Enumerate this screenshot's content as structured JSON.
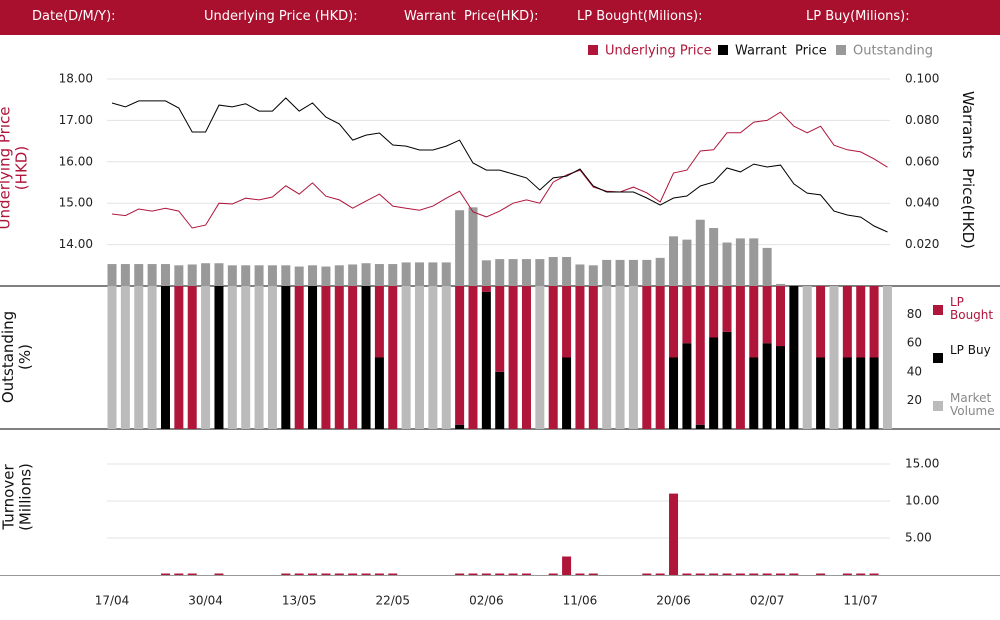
{
  "header": {
    "fields": [
      "Date(D/M/Y):",
      "Underlying Price (HKD):",
      "Warrant  Price(HKD):",
      "LP Bought(Milions):",
      "LP Buy(Milions):"
    ]
  },
  "chart_data": [
    {
      "type": "line",
      "ylabel": "Underlying Price (HKD)",
      "y2label": "Warrants  Price(HKD)",
      "ylim": [
        13,
        18
      ],
      "yticks": [
        {
          "value": 14,
          "label": "14.00"
        },
        {
          "value": 15,
          "label": "15.00"
        },
        {
          "value": 16,
          "label": "16.00"
        },
        {
          "value": 17,
          "label": "17.00"
        },
        {
          "value": 18,
          "label": "18.00"
        }
      ],
      "y2lim": [
        0,
        0.1
      ],
      "y2ticks": [
        {
          "value": 0.02,
          "label": "0.020"
        },
        {
          "value": 0.04,
          "label": "0.040"
        },
        {
          "value": 0.06,
          "label": "0.060"
        },
        {
          "value": 0.08,
          "label": "0.080"
        },
        {
          "value": 0.1,
          "label": "0.100"
        }
      ],
      "grid": true,
      "series": [
        {
          "name": "Underlying Price",
          "color": "#b0153a",
          "type": "line",
          "values": [
            14.74,
            14.7,
            14.86,
            14.81,
            14.88,
            14.81,
            14.4,
            14.47,
            15.0,
            14.98,
            15.12,
            15.08,
            15.15,
            15.42,
            15.22,
            15.49,
            15.17,
            15.08,
            14.88,
            15.05,
            15.22,
            14.93,
            14.88,
            14.83,
            14.93,
            15.12,
            15.29,
            14.79,
            14.67,
            14.81,
            15.0,
            15.08,
            15.0,
            15.51,
            15.68,
            15.8,
            15.39,
            15.29,
            15.27,
            15.39,
            15.25,
            15.03,
            15.73,
            15.8,
            16.26,
            16.29,
            16.7,
            16.7,
            16.96,
            17.0,
            17.2,
            16.86,
            16.7,
            16.86,
            16.4,
            16.29,
            16.24,
            16.07,
            15.87
          ]
        },
        {
          "name": "Warrant  Price",
          "color": "#000000",
          "type": "line",
          "axis": "y2",
          "values": [
            0.0884,
            0.0865,
            0.0894,
            0.0894,
            0.0894,
            0.086,
            0.0744,
            0.0744,
            0.0874,
            0.0865,
            0.088,
            0.0845,
            0.0845,
            0.0908,
            0.0845,
            0.0884,
            0.0816,
            0.0783,
            0.0705,
            0.0729,
            0.0739,
            0.0681,
            0.0676,
            0.0657,
            0.0657,
            0.0676,
            0.0705,
            0.0594,
            0.056,
            0.056,
            0.0541,
            0.0522,
            0.0464,
            0.0522,
            0.0531,
            0.0565,
            0.0483,
            0.0454,
            0.0454,
            0.0454,
            0.0425,
            0.0391,
            0.0425,
            0.0435,
            0.0483,
            0.0502,
            0.057,
            0.0551,
            0.0589,
            0.0575,
            0.0584,
            0.0493,
            0.0449,
            0.044,
            0.0362,
            0.0343,
            0.0333,
            0.029,
            0.0261
          ]
        },
        {
          "name": "Outstanding",
          "color": "#999999",
          "type": "bar",
          "values": [
            13.53,
            13.53,
            13.53,
            13.53,
            13.53,
            13.5,
            13.52,
            13.55,
            13.55,
            13.5,
            13.5,
            13.5,
            13.5,
            13.5,
            13.47,
            13.5,
            13.47,
            13.5,
            13.52,
            13.55,
            13.53,
            13.53,
            13.57,
            13.57,
            13.57,
            13.57,
            14.83,
            14.9,
            13.62,
            13.65,
            13.65,
            13.65,
            13.65,
            13.7,
            13.7,
            13.52,
            13.5,
            13.63,
            13.63,
            13.63,
            13.63,
            13.68,
            14.2,
            14.12,
            14.6,
            14.4,
            14.05,
            14.15,
            14.15,
            13.92,
            13.05,
            null,
            null,
            null,
            null,
            null,
            null,
            null,
            null
          ]
        }
      ]
    },
    {
      "type": "stacked_bar",
      "ylabel": "Outstanding (%)",
      "ylim": [
        0,
        100
      ],
      "yticks": [
        20,
        40,
        60,
        80
      ],
      "series": [
        {
          "name": "LP Bought",
          "color": "#b0153a",
          "values": [
            0,
            0,
            0,
            0,
            0,
            100,
            100,
            0,
            0,
            0,
            0,
            0,
            0,
            0,
            100,
            0,
            100,
            100,
            100,
            0,
            50,
            100,
            0,
            0,
            0,
            0,
            97,
            100,
            4,
            60,
            100,
            100,
            0,
            100,
            50,
            100,
            100,
            0,
            0,
            0,
            100,
            100,
            50,
            40,
            97,
            36,
            32,
            100,
            50,
            40,
            42,
            0,
            0,
            50,
            0,
            50,
            50,
            50,
            0
          ]
        },
        {
          "name": "LP Buy",
          "color": "#000000",
          "values": [
            0,
            0,
            0,
            0,
            100,
            0,
            0,
            0,
            100,
            0,
            0,
            0,
            0,
            100,
            0,
            100,
            0,
            0,
            0,
            100,
            50,
            0,
            0,
            0,
            0,
            0,
            3,
            0,
            96,
            40,
            0,
            0,
            0,
            0,
            50,
            0,
            0,
            0,
            0,
            0,
            0,
            0,
            50,
            60,
            3,
            64,
            68,
            0,
            50,
            60,
            58,
            100,
            0,
            50,
            0,
            50,
            50,
            50,
            0
          ]
        },
        {
          "name": "Market Volume",
          "color": "#bbbbbb",
          "values": [
            100,
            100,
            100,
            100,
            0,
            0,
            0,
            100,
            0,
            100,
            100,
            100,
            100,
            0,
            0,
            0,
            0,
            0,
            0,
            0,
            0,
            0,
            100,
            100,
            100,
            100,
            0,
            0,
            0,
            0,
            0,
            0,
            100,
            0,
            0,
            0,
            0,
            100,
            100,
            100,
            0,
            0,
            0,
            0,
            0,
            0,
            0,
            0,
            0,
            0,
            0,
            0,
            100,
            0,
            100,
            0,
            0,
            0,
            100
          ]
        }
      ]
    },
    {
      "type": "bar",
      "ylabel": "Turnover (Millions)",
      "ylim": [
        0,
        17.5
      ],
      "yticks": [
        {
          "value": 5,
          "label": "5.00"
        },
        {
          "value": 10,
          "label": "10.00"
        },
        {
          "value": 15,
          "label": "15.00"
        }
      ],
      "grid": true,
      "color": "#b0153a",
      "categories": [
        "17/04",
        null,
        null,
        null,
        null,
        null,
        null,
        "30/04",
        null,
        null,
        null,
        null,
        null,
        null,
        "13/05",
        null,
        null,
        null,
        null,
        null,
        null,
        "22/05",
        null,
        null,
        null,
        null,
        null,
        null,
        "02/06",
        null,
        null,
        null,
        null,
        null,
        null,
        "11/06",
        null,
        null,
        null,
        null,
        null,
        null,
        "20/06",
        null,
        null,
        null,
        null,
        null,
        null,
        "02/07",
        null,
        null,
        null,
        null,
        null,
        null,
        "11/07",
        null,
        null
      ],
      "values": [
        0,
        0,
        0,
        0,
        0.2,
        0.2,
        0.2,
        0,
        0.2,
        0,
        0,
        0,
        0,
        0.2,
        0.2,
        0.2,
        0.2,
        0.2,
        0.2,
        0.2,
        0.2,
        0.2,
        0,
        0,
        0,
        0,
        0.2,
        0.2,
        0.2,
        0.2,
        0.2,
        0.2,
        0,
        0.2,
        2.5,
        0.2,
        0.2,
        0,
        0,
        0,
        0.2,
        0.2,
        11,
        0.2,
        0.2,
        0.2,
        0.2,
        0.2,
        0.2,
        0.2,
        0.2,
        0.2,
        0,
        0.2,
        0,
        0.2,
        0.2,
        0.2,
        0
      ]
    }
  ]
}
